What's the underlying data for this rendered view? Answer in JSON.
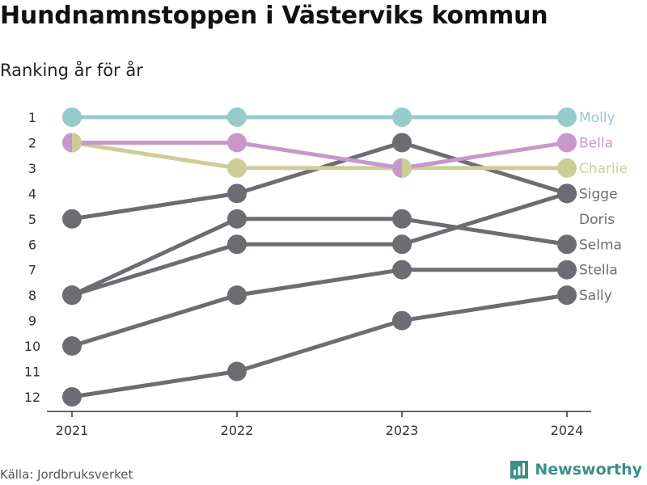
{
  "title": "Hundnamnstoppen i Västerviks kommun",
  "subtitle": "Ranking år för år",
  "source": "Källa: Jordbruksverket",
  "brand": "Newsworthy",
  "chart_data": {
    "type": "line",
    "x": [
      "2021",
      "2022",
      "2023",
      "2024"
    ],
    "y_ticks": [
      1,
      2,
      3,
      4,
      5,
      6,
      7,
      8,
      9,
      10,
      11,
      12
    ],
    "ylim": [
      1,
      12
    ],
    "y_reversed": true,
    "grid": false,
    "series": [
      {
        "name": "Sally",
        "values": [
          12,
          11,
          9,
          8
        ],
        "color": "#6d6c72"
      },
      {
        "name": "Stella",
        "values": [
          10,
          8,
          7,
          7
        ],
        "color": "#6d6c72"
      },
      {
        "name": "Selma",
        "values": [
          8,
          5,
          5,
          6
        ],
        "color": "#6d6c72"
      },
      {
        "name": "Sigge",
        "values": [
          5,
          4,
          2,
          4
        ],
        "color": "#6d6c72"
      },
      {
        "name": "Doris",
        "values": [
          8,
          6,
          6,
          4
        ],
        "color": "#6d6c72"
      },
      {
        "name": "Charlie",
        "values": [
          2,
          3,
          3,
          3
        ],
        "color": "#cdcd98"
      },
      {
        "name": "Bella",
        "values": [
          2,
          2,
          3,
          2
        ],
        "color": "#c997cc"
      },
      {
        "name": "Molly",
        "values": [
          1,
          1,
          1,
          1
        ],
        "color": "#97cbcb"
      }
    ],
    "end_labels": [
      {
        "name": "Molly",
        "rank": 1,
        "color": "#97cbcb"
      },
      {
        "name": "Bella",
        "rank": 2,
        "color": "#c997cc"
      },
      {
        "name": "Charlie",
        "rank": 3,
        "color": "#cdcd98"
      },
      {
        "name": "Sigge",
        "rank": 4,
        "color": "#6d6c72"
      },
      {
        "name": "Doris",
        "rank": 5,
        "color": "#6d6c72"
      },
      {
        "name": "Selma",
        "rank": 6,
        "color": "#6d6c72"
      },
      {
        "name": "Stella",
        "rank": 7,
        "color": "#6d6c72"
      },
      {
        "name": "Sally",
        "rank": 8,
        "color": "#6d6c72"
      }
    ]
  }
}
